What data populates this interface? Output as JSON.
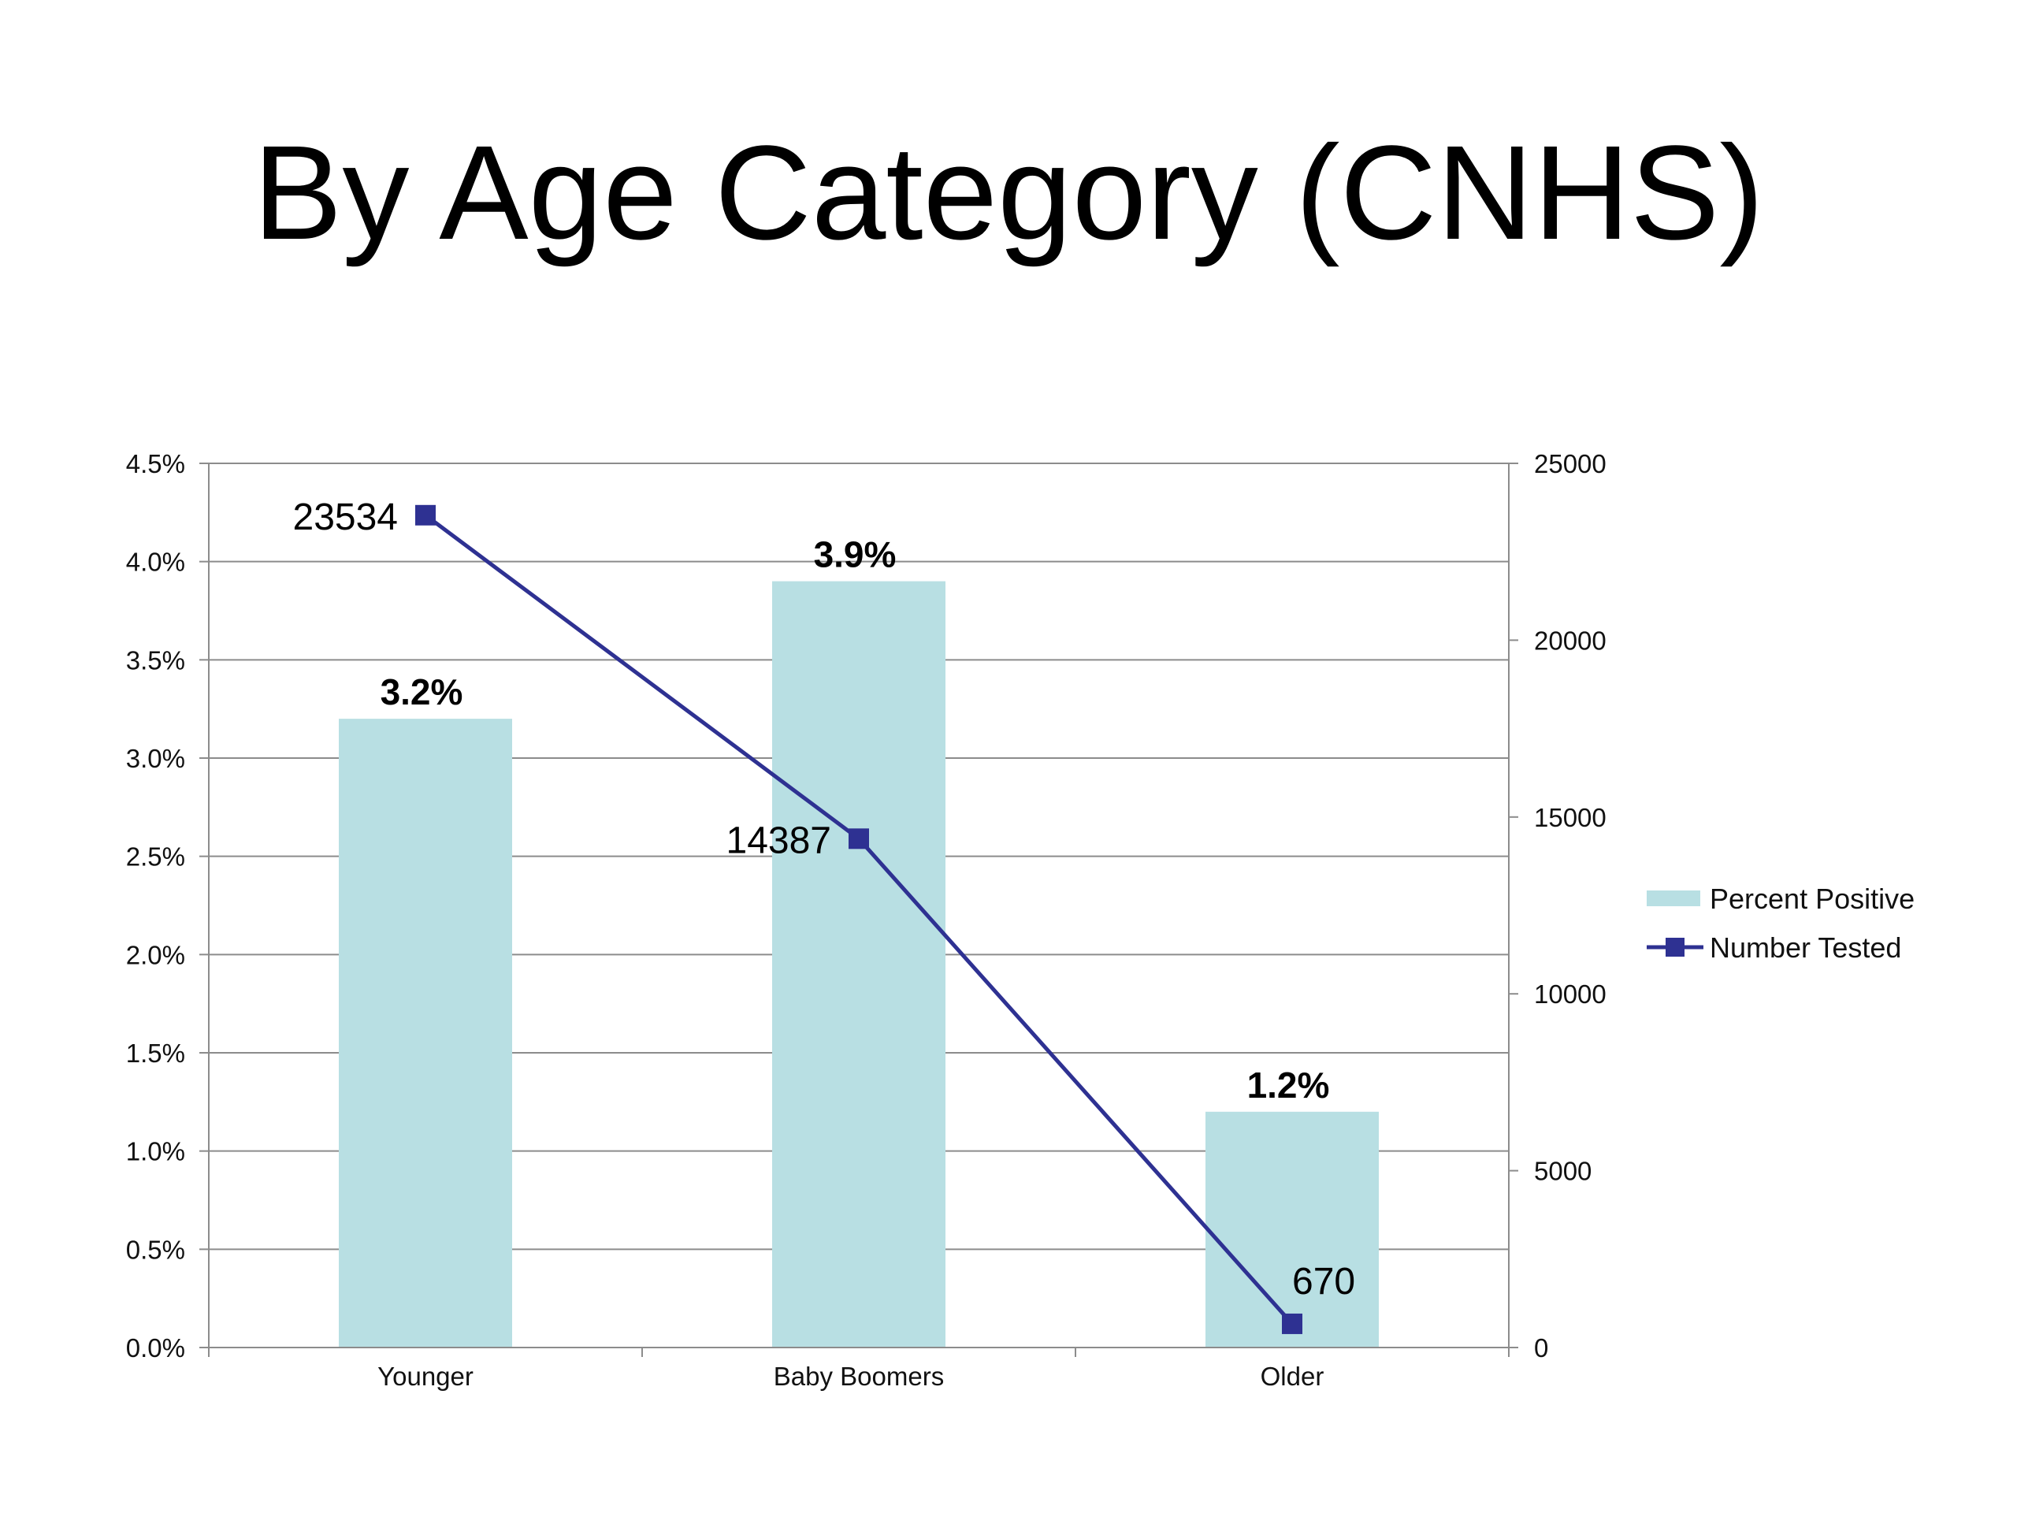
{
  "chart_data": {
    "type": "bar",
    "title": "By Age Category (CNHS)",
    "categories": [
      "Younger",
      "Baby Boomers",
      "Older"
    ],
    "series": [
      {
        "name": "Percent Positive",
        "type": "bar",
        "axis": "left",
        "values": [
          3.2,
          3.9,
          1.2
        ],
        "labels": [
          "3.2%",
          "3.9%",
          "1.2%"
        ],
        "color": "#b8dfe3"
      },
      {
        "name": "Number Tested",
        "type": "line",
        "axis": "right",
        "values": [
          23534,
          14387,
          670
        ],
        "labels": [
          "23534",
          "14387",
          "670"
        ],
        "color": "#2e3192"
      }
    ],
    "y_left": {
      "lim": [
        0,
        4.5
      ],
      "ticks": [
        0,
        0.5,
        1.0,
        1.5,
        2.0,
        2.5,
        3.0,
        3.5,
        4.0,
        4.5
      ],
      "tick_labels": [
        "0.0%",
        "0.5%",
        "1.0%",
        "1.5%",
        "2.0%",
        "2.5%",
        "3.0%",
        "3.5%",
        "4.0%",
        "4.5%"
      ]
    },
    "y_right": {
      "lim": [
        0,
        25000
      ],
      "ticks": [
        0,
        5000,
        10000,
        15000,
        20000,
        25000
      ],
      "tick_labels": [
        "0",
        "5000",
        "10000",
        "15000",
        "20000",
        "25000"
      ]
    },
    "grid": true,
    "legend_position": "right",
    "gridline_color": "#8c8c8c"
  }
}
